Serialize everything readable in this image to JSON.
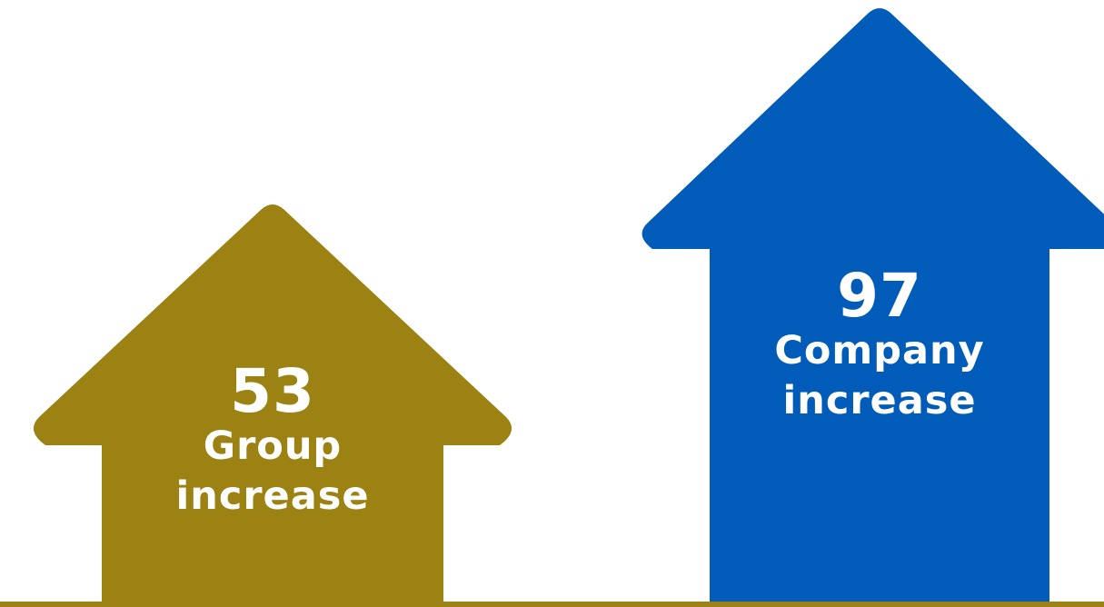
{
  "colors": {
    "group": "#9c8212",
    "company": "#005cb8",
    "text": "#ffffff"
  },
  "arrows": {
    "group": {
      "value": "53",
      "label_line1": "Group",
      "label_line2": "increase"
    },
    "company": {
      "value": "97",
      "label_line1": "Company",
      "label_line2": "increase"
    }
  }
}
